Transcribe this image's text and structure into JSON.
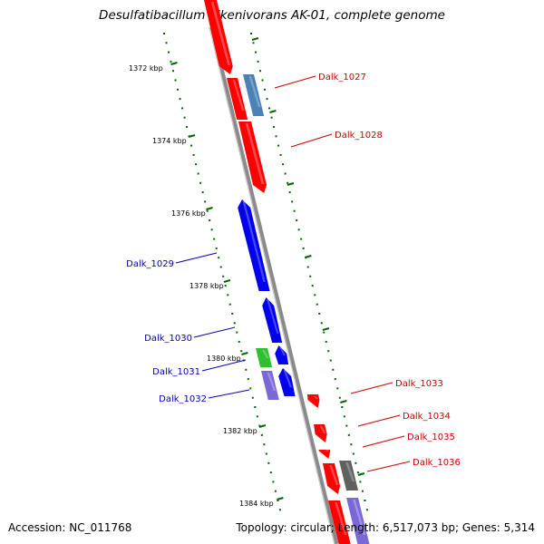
{
  "title": "Desulfatibacillum alkenivorans AK-01, complete genome",
  "footer": {
    "accession": "Accession: NC_011768",
    "summary": "Topology: circular; Length: 6,517,073 bp; Genes: 5,314"
  },
  "colors": {
    "forward_strand": "#ff0000",
    "reverse_strand": "#0000ee",
    "forward_other": "#4a82b8",
    "grey_gene": "#606060",
    "green_gene": "#2ec02e",
    "purple_gene": "#7b68d6",
    "backbone": "#8a8a8a",
    "scale_tick": "#006600",
    "forward_label": "#cc0000",
    "reverse_label": "#0000aa"
  },
  "scale": {
    "ticks": [
      {
        "label": "1372 kbp"
      },
      {
        "label": "1374 kbp"
      },
      {
        "label": "1376 kbp"
      },
      {
        "label": "1378 kbp"
      },
      {
        "label": "1380 kbp"
      },
      {
        "label": "1382 kbp"
      },
      {
        "label": "1384 kbp"
      }
    ]
  },
  "labels": [
    {
      "text": "Dalk_1027",
      "strand": "forward"
    },
    {
      "text": "Dalk_1028",
      "strand": "forward"
    },
    {
      "text": "Dalk_1029",
      "strand": "reverse"
    },
    {
      "text": "Dalk_1030",
      "strand": "reverse"
    },
    {
      "text": "Dalk_1031",
      "strand": "reverse"
    },
    {
      "text": "Dalk_1032",
      "strand": "reverse"
    },
    {
      "text": "Dalk_1033",
      "strand": "forward"
    },
    {
      "text": "Dalk_1034",
      "strand": "forward"
    },
    {
      "text": "Dalk_1035",
      "strand": "forward"
    },
    {
      "text": "Dalk_1036",
      "strand": "forward"
    }
  ]
}
